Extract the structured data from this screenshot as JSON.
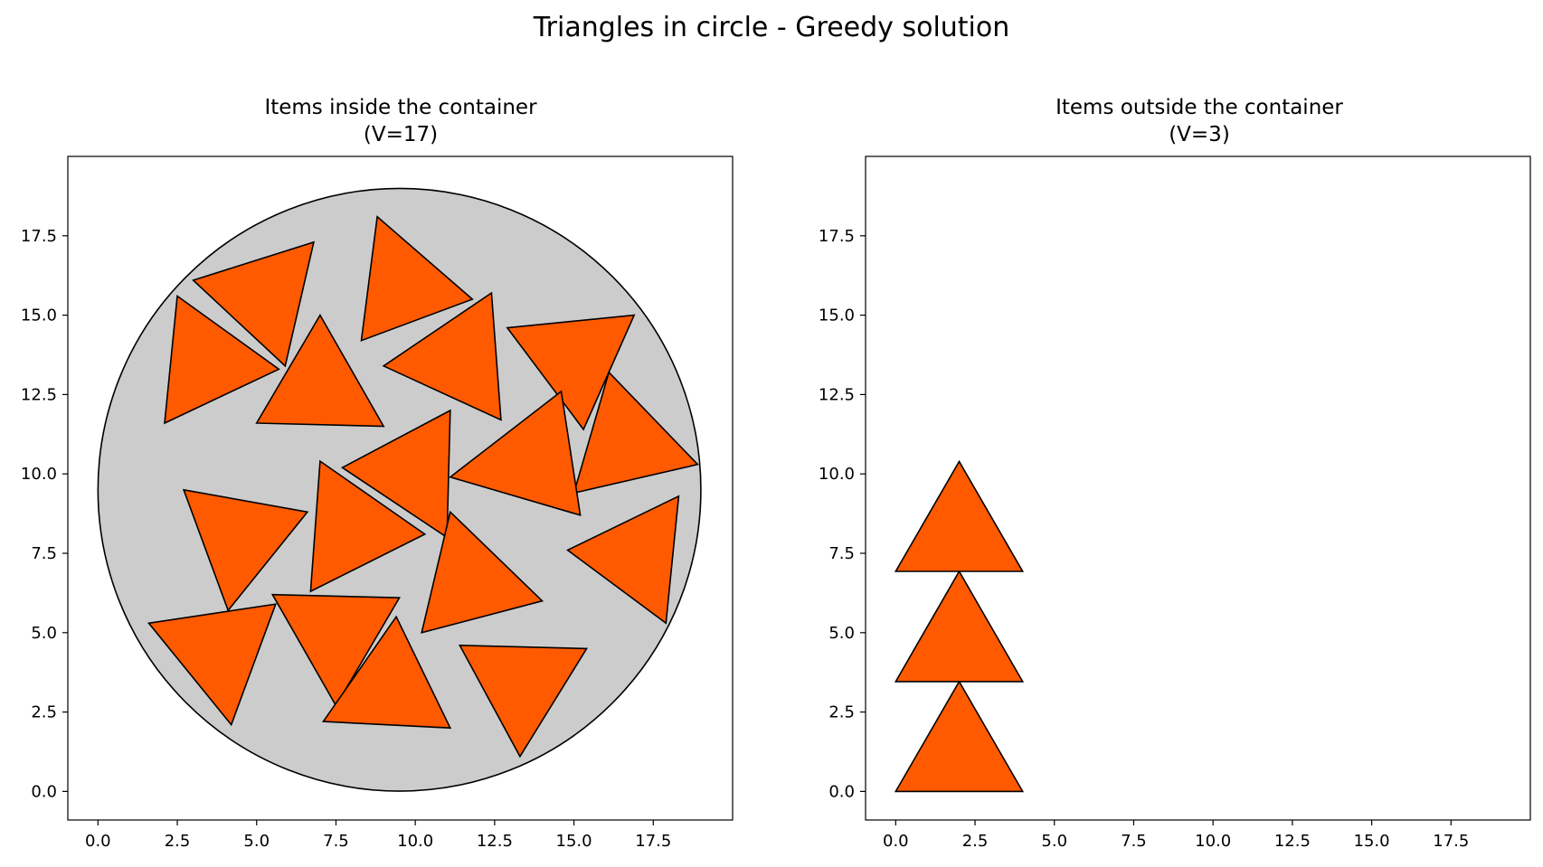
{
  "figure": {
    "title": "Triangles in circle - Greedy solution",
    "colors": {
      "item_fill": "#ff5a00",
      "container_fill": "#cccccc",
      "edge": "#000000"
    }
  },
  "chart_data": [
    {
      "type": "polygon-plot",
      "title_line1": "Items inside the container",
      "title_line2": "(V=17)",
      "xlim": [
        -0.95,
        20.0
      ],
      "ylim": [
        -0.9,
        20.0
      ],
      "xticks": [
        0.0,
        2.5,
        5.0,
        7.5,
        10.0,
        12.5,
        15.0,
        17.5
      ],
      "yticks": [
        0.0,
        2.5,
        5.0,
        7.5,
        10.0,
        12.5,
        15.0,
        17.5
      ],
      "xtick_labels": [
        "0.0",
        "2.5",
        "5.0",
        "7.5",
        "10.0",
        "12.5",
        "15.0",
        "17.5"
      ],
      "ytick_labels": [
        "0.0",
        "2.5",
        "5.0",
        "7.5",
        "10.0",
        "12.5",
        "15.0",
        "17.5"
      ],
      "container": {
        "shape": "circle",
        "center": [
          9.5,
          9.5
        ],
        "radius": 9.5
      },
      "items": [
        [
          [
            3.0,
            16.1
          ],
          [
            6.8,
            17.3
          ],
          [
            5.9,
            13.4
          ]
        ],
        [
          [
            8.3,
            14.2
          ],
          [
            8.8,
            18.1
          ],
          [
            11.8,
            15.5
          ]
        ],
        [
          [
            2.5,
            15.6
          ],
          [
            2.1,
            11.6
          ],
          [
            5.7,
            13.3
          ]
        ],
        [
          [
            5.0,
            11.6
          ],
          [
            9.0,
            11.5
          ],
          [
            7.0,
            15.0
          ]
        ],
        [
          [
            9.0,
            13.4
          ],
          [
            12.4,
            15.7
          ],
          [
            12.7,
            11.7
          ]
        ],
        [
          [
            12.9,
            14.6
          ],
          [
            16.9,
            15.0
          ],
          [
            15.3,
            11.4
          ]
        ],
        [
          [
            7.7,
            10.2
          ],
          [
            11.1,
            12.0
          ],
          [
            11.0,
            8.0
          ]
        ],
        [
          [
            16.1,
            13.2
          ],
          [
            18.9,
            10.3
          ],
          [
            15.0,
            9.4
          ]
        ],
        [
          [
            11.1,
            9.9
          ],
          [
            14.6,
            12.6
          ],
          [
            15.2,
            8.7
          ]
        ],
        [
          [
            2.7,
            9.5
          ],
          [
            6.6,
            8.8
          ],
          [
            4.1,
            5.7
          ]
        ],
        [
          [
            7.0,
            10.4
          ],
          [
            10.3,
            8.1
          ],
          [
            6.7,
            6.3
          ]
        ],
        [
          [
            11.1,
            8.8
          ],
          [
            14.0,
            6.0
          ],
          [
            10.2,
            5.0
          ]
        ],
        [
          [
            14.8,
            7.6
          ],
          [
            18.3,
            9.3
          ],
          [
            17.9,
            5.3
          ]
        ],
        [
          [
            1.6,
            5.3
          ],
          [
            5.6,
            5.9
          ],
          [
            4.2,
            2.1
          ]
        ],
        [
          [
            5.5,
            6.2
          ],
          [
            9.5,
            6.1
          ],
          [
            7.5,
            2.7
          ]
        ],
        [
          [
            7.1,
            2.2
          ],
          [
            11.1,
            2.0
          ],
          [
            9.4,
            5.5
          ]
        ],
        [
          [
            11.4,
            4.6
          ],
          [
            15.4,
            4.5
          ],
          [
            13.3,
            1.1
          ]
        ]
      ]
    },
    {
      "type": "polygon-plot",
      "title_line1": "Items outside the container",
      "title_line2": "(V=3)",
      "xlim": [
        -0.95,
        20.0
      ],
      "ylim": [
        -0.9,
        20.0
      ],
      "xticks": [
        0.0,
        2.5,
        5.0,
        7.5,
        10.0,
        12.5,
        15.0,
        17.5
      ],
      "yticks": [
        0.0,
        2.5,
        5.0,
        7.5,
        10.0,
        12.5,
        15.0,
        17.5
      ],
      "xtick_labels": [
        "0.0",
        "2.5",
        "5.0",
        "7.5",
        "10.0",
        "12.5",
        "15.0",
        "17.5"
      ],
      "ytick_labels": [
        "0.0",
        "2.5",
        "5.0",
        "7.5",
        "10.0",
        "12.5",
        "15.0",
        "17.5"
      ],
      "container": null,
      "items": [
        [
          [
            0.0,
            0.0
          ],
          [
            4.0,
            0.0
          ],
          [
            2.0,
            3.46
          ]
        ],
        [
          [
            0.0,
            3.46
          ],
          [
            4.0,
            3.46
          ],
          [
            2.0,
            6.93
          ]
        ],
        [
          [
            0.0,
            6.93
          ],
          [
            4.0,
            6.93
          ],
          [
            2.0,
            10.39
          ]
        ]
      ]
    }
  ]
}
